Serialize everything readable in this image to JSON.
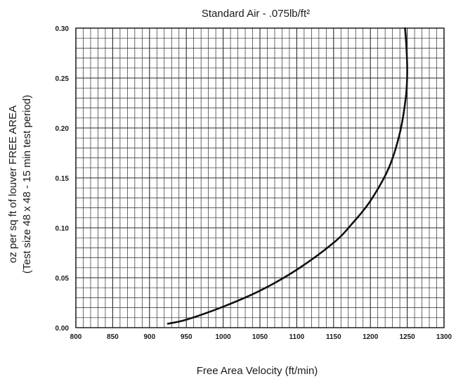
{
  "chart_data": {
    "type": "line",
    "title": "Standard Air - .075lb/ft²",
    "xlabel": "Free Area Velocity (ft/min)",
    "ylabel_line1": "oz per sq ft of louver FREE AREA",
    "ylabel_line2": "(Test size 48 x 48 - 15 min test period)",
    "xlim": [
      800,
      1300
    ],
    "ylim": [
      0,
      0.3
    ],
    "x_ticks": [
      "800",
      "850",
      "900",
      "950",
      "1000",
      "1050",
      "1100",
      "1150",
      "1200",
      "1250",
      "1300"
    ],
    "y_ticks": [
      "0.00",
      "0.05",
      "0.10",
      "0.15",
      "0.20",
      "0.25",
      "0.30"
    ],
    "grid": true,
    "series": [
      {
        "x": [
          925,
          950,
          1000,
          1050,
          1100,
          1150,
          1175,
          1200,
          1225,
          1240,
          1248,
          1250,
          1249,
          1247
        ],
        "y": [
          0.004,
          0.008,
          0.021,
          0.037,
          0.058,
          0.085,
          0.104,
          0.127,
          0.16,
          0.195,
          0.23,
          0.255,
          0.28,
          0.3
        ]
      }
    ],
    "colors": {
      "line": "#111111",
      "grid": "#2a2a2a"
    }
  }
}
